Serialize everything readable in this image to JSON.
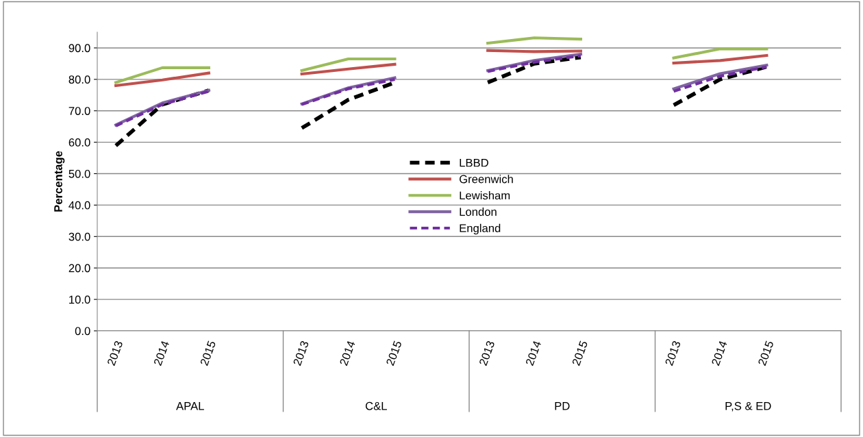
{
  "chart_data": {
    "type": "line",
    "ylabel": "Percentage",
    "categories": [
      "2013",
      "2014",
      "2015",
      null,
      "2013",
      "2014",
      "2015",
      null,
      "2013",
      "2014",
      "2015",
      null,
      "2013",
      "2014",
      "2015",
      null
    ],
    "annotations": [
      "APAL",
      "C&L",
      "PD",
      "P,S & ED"
    ],
    "series": [
      {
        "name": "LBBD",
        "color": "#000000",
        "line_style": "dashed",
        "values": [
          58.9,
          72,
          76.5,
          null,
          64.5,
          73.5,
          79,
          null,
          79,
          85,
          87,
          null,
          71.8,
          80,
          84,
          null
        ]
      },
      {
        "name": "Greenwich",
        "color": "#c0504d",
        "values": [
          78,
          79.8,
          82,
          null,
          81.7,
          83.3,
          84.8,
          null,
          89.2,
          88.8,
          89,
          null,
          85.2,
          86,
          87.6,
          null
        ]
      },
      {
        "name": "Lewisham",
        "color": "#9bbb59",
        "values": [
          79,
          83.7,
          83.7,
          null,
          82.8,
          86.5,
          86.5,
          null,
          91.5,
          93.2,
          92.8,
          null,
          86.8,
          89.7,
          89.7,
          null
        ]
      },
      {
        "name": "London",
        "color": "#8064a2",
        "values": [
          65.5,
          72.5,
          76.5,
          null,
          72.2,
          77.3,
          80.5,
          null,
          82.8,
          86,
          88,
          null,
          77,
          81.8,
          84.5,
          null
        ]
      },
      {
        "name": "England",
        "color": "#7030a0",
        "line_style": "dashed",
        "values": [
          65.2,
          72,
          76.2,
          null,
          72,
          77,
          80,
          null,
          82.5,
          85.5,
          87.5,
          null,
          76.2,
          81,
          84,
          null
        ]
      }
    ],
    "ylim": [
      0,
      95
    ],
    "yticks": [
      {
        "value": 0,
        "label": "0.0"
      },
      {
        "value": 10,
        "label": "10.0"
      },
      {
        "value": 20,
        "label": "20.0"
      },
      {
        "value": 30,
        "label": "30.0"
      },
      {
        "value": 40,
        "label": "40.0"
      },
      {
        "value": 50,
        "label": "50.0"
      },
      {
        "value": 60,
        "label": "60.0"
      },
      {
        "value": 70,
        "label": "70.0"
      },
      {
        "value": 80,
        "label": "80.0"
      },
      {
        "value": 90,
        "label": "90.0"
      }
    ],
    "grid": "y",
    "legend": "center",
    "marker": "none"
  }
}
